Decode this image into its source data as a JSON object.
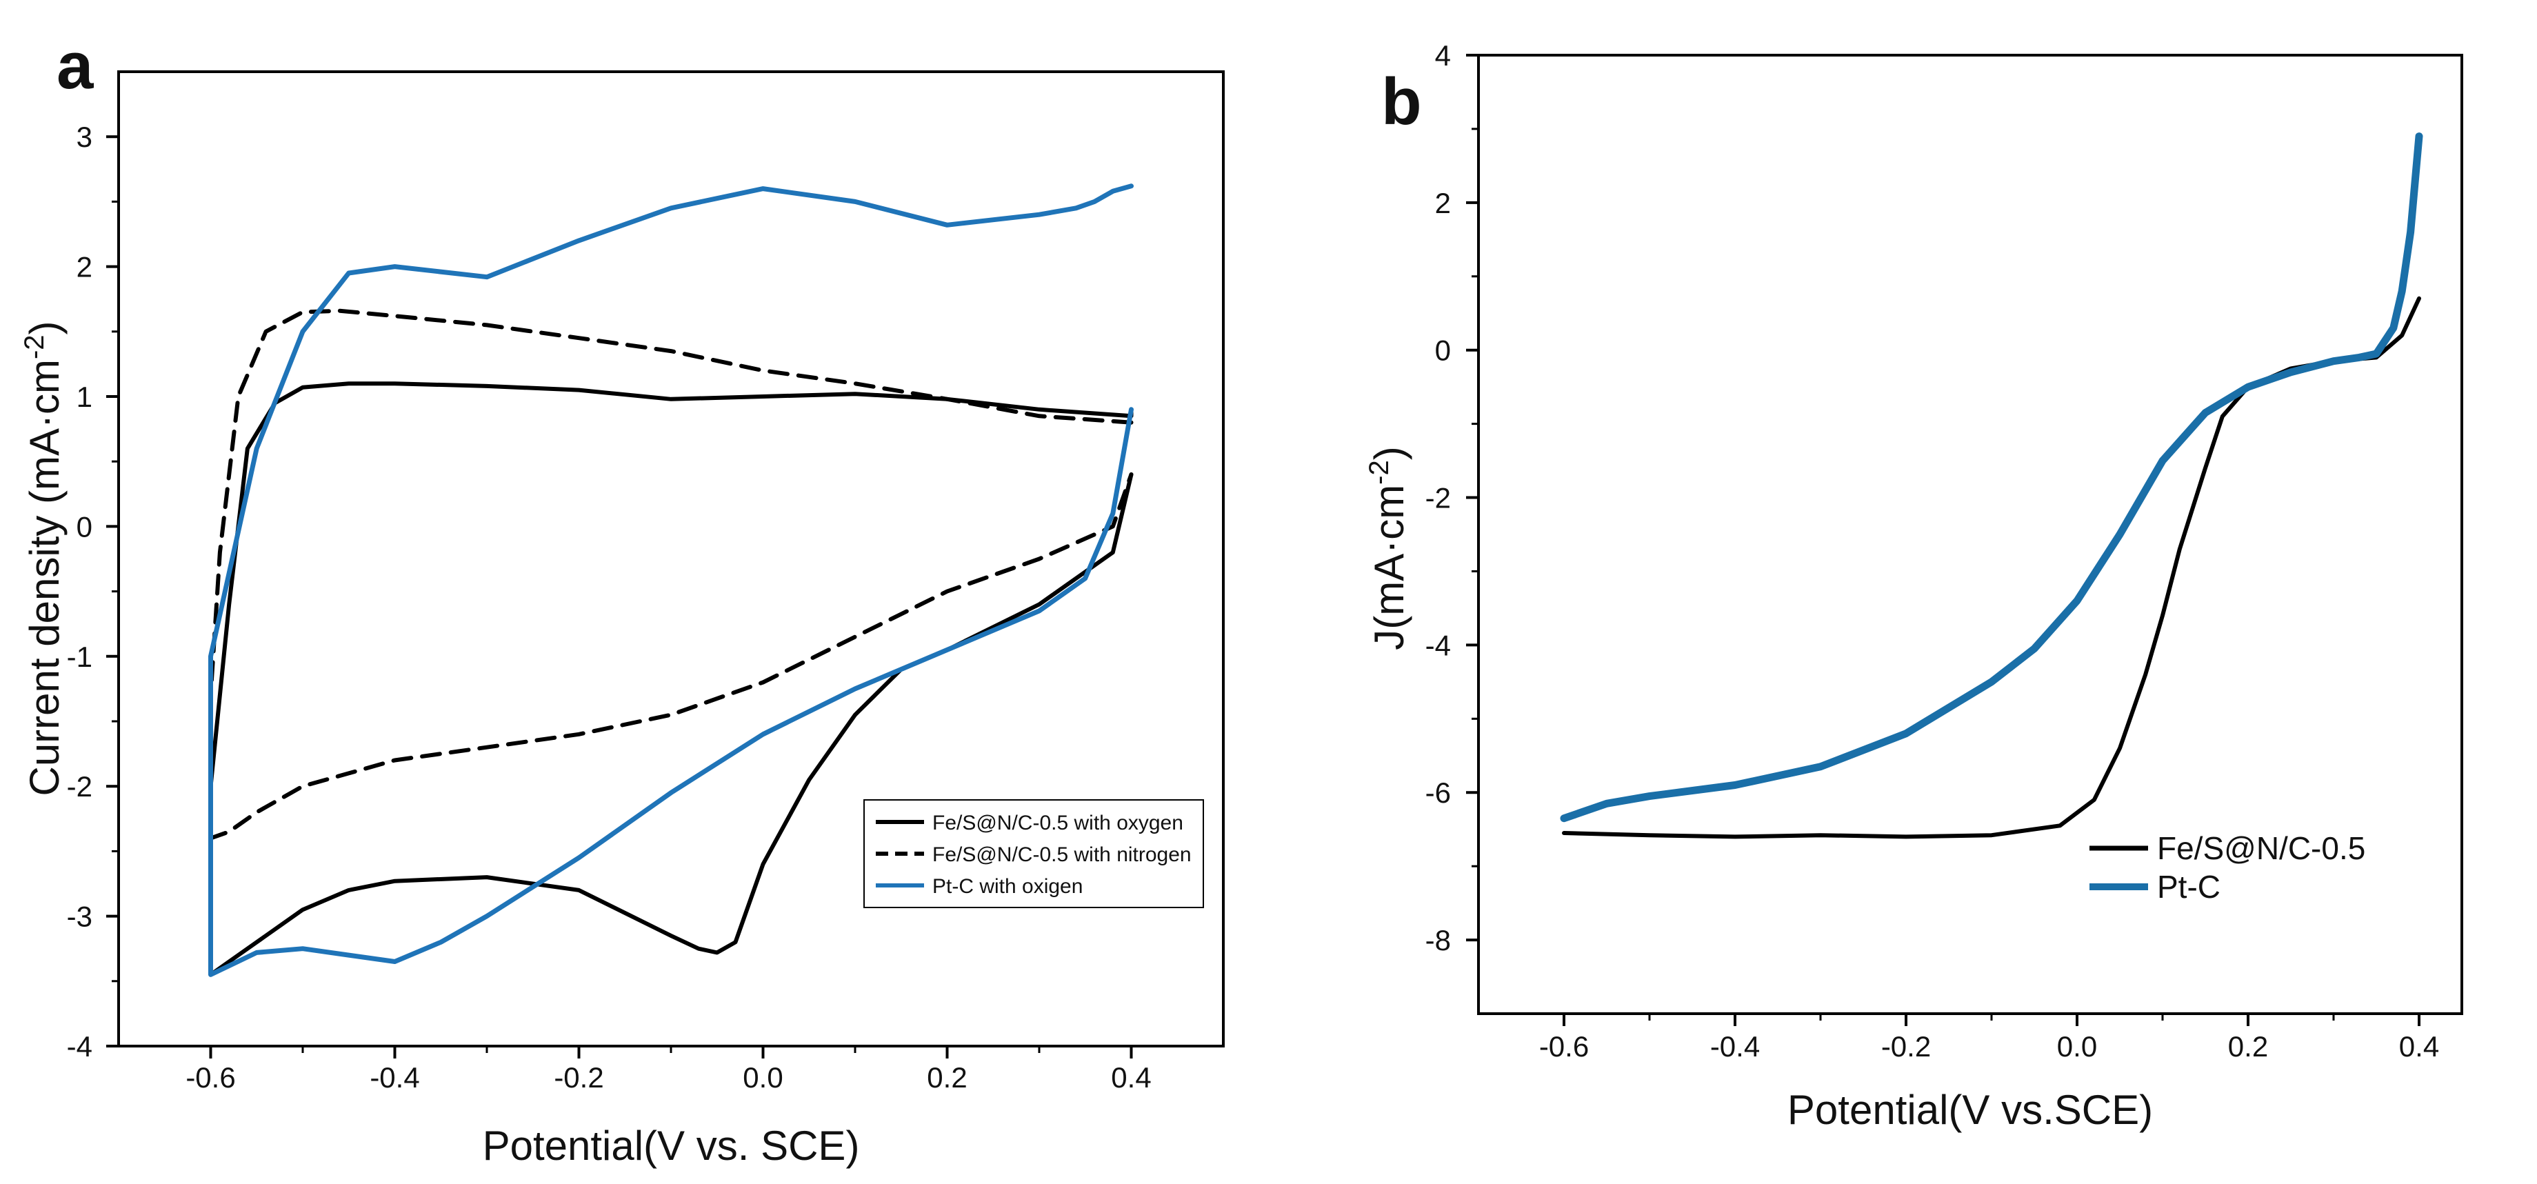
{
  "chart_data": [
    {
      "panel": "a",
      "type": "line",
      "title": "",
      "xlabel": "Potential(V vs. SCE)",
      "ylabel": "Current density (mA·cm",
      "ylabel_sup": "-2",
      "ylabel_tail": ")",
      "xlim": [
        -0.7,
        0.5
      ],
      "ylim": [
        -4,
        3.5
      ],
      "xticks": [
        -0.6,
        -0.4,
        -0.2,
        0.0,
        0.2,
        0.4
      ],
      "xtick_labels": [
        "-0.6",
        "-0.4",
        "-0.2",
        "0.0",
        "0.2",
        "0.4"
      ],
      "yticks": [
        -4,
        -3,
        -2,
        -1,
        0,
        1,
        2,
        3
      ],
      "ytick_labels": [
        "-4",
        "-3",
        "-2",
        "-1",
        "0",
        "1",
        "2",
        "3"
      ],
      "grid": false,
      "legend_position": "lower-right",
      "series": [
        {
          "name": "Fe/S@N/C-0.5 with oxygen",
          "color": "#000000",
          "style": "solid",
          "x": [
            0.4,
            0.4,
            0.3,
            0.2,
            0.1,
            0.0,
            -0.1,
            -0.2,
            -0.3,
            -0.4,
            -0.45,
            -0.5,
            -0.53,
            -0.56,
            -0.58,
            -0.6,
            -0.6,
            -0.56,
            -0.5,
            -0.45,
            -0.4,
            -0.3,
            -0.2,
            -0.1,
            -0.07,
            -0.05,
            -0.03,
            0.0,
            0.05,
            0.1,
            0.15,
            0.2,
            0.3,
            0.38,
            0.4
          ],
          "y": [
            0.9,
            0.85,
            0.9,
            0.98,
            1.02,
            1.0,
            0.98,
            1.05,
            1.08,
            1.1,
            1.1,
            1.07,
            0.95,
            0.6,
            -0.6,
            -2.0,
            -3.45,
            -3.25,
            -2.95,
            -2.8,
            -2.73,
            -2.7,
            -2.8,
            -3.15,
            -3.25,
            -3.28,
            -3.2,
            -2.6,
            -1.95,
            -1.45,
            -1.1,
            -0.95,
            -0.6,
            -0.2,
            0.4
          ]
        },
        {
          "name": "Fe/S@N/C-0.5 with nitrogen",
          "color": "#000000",
          "style": "dashed",
          "x": [
            0.4,
            0.3,
            0.2,
            0.1,
            0.0,
            -0.1,
            -0.2,
            -0.3,
            -0.4,
            -0.46,
            -0.5,
            -0.54,
            -0.57,
            -0.59,
            -0.6,
            -0.6,
            -0.58,
            -0.55,
            -0.5,
            -0.45,
            -0.4,
            -0.3,
            -0.2,
            -0.1,
            0.0,
            0.1,
            0.2,
            0.3,
            0.38,
            0.4
          ],
          "y": [
            0.8,
            0.85,
            0.98,
            1.1,
            1.2,
            1.35,
            1.45,
            1.55,
            1.62,
            1.66,
            1.65,
            1.5,
            1.0,
            -0.2,
            -1.3,
            -2.4,
            -2.35,
            -2.2,
            -2.0,
            -1.9,
            -1.8,
            -1.7,
            -1.6,
            -1.45,
            -1.2,
            -0.85,
            -0.5,
            -0.25,
            0.0,
            0.4
          ]
        },
        {
          "name": "Pt-C with oxigen",
          "color": "#1f74b8",
          "style": "solid",
          "x": [
            0.4,
            0.38,
            0.36,
            0.34,
            0.3,
            0.2,
            0.1,
            0.0,
            -0.1,
            -0.2,
            -0.3,
            -0.4,
            -0.45,
            -0.5,
            -0.55,
            -0.6,
            -0.6,
            -0.55,
            -0.5,
            -0.45,
            -0.4,
            -0.35,
            -0.3,
            -0.2,
            -0.1,
            0.0,
            0.1,
            0.2,
            0.3,
            0.35,
            0.38,
            0.4
          ],
          "y": [
            2.62,
            2.58,
            2.5,
            2.45,
            2.4,
            2.32,
            2.5,
            2.6,
            2.45,
            2.2,
            1.92,
            2.0,
            1.95,
            1.5,
            0.6,
            -1.0,
            -3.45,
            -3.28,
            -3.25,
            -3.3,
            -3.35,
            -3.2,
            -3.0,
            -2.55,
            -2.05,
            -1.6,
            -1.25,
            -0.95,
            -0.65,
            -0.4,
            0.1,
            0.9
          ]
        }
      ]
    },
    {
      "panel": "b",
      "type": "line",
      "title": "",
      "xlabel": "Potential(V vs.SCE)",
      "ylabel": "J(mA·cm",
      "ylabel_sup": "-2",
      "ylabel_tail": ")",
      "xlim": [
        -0.7,
        0.45
      ],
      "ylim": [
        -9,
        4
      ],
      "xticks": [
        -0.6,
        -0.4,
        -0.2,
        0.0,
        0.2,
        0.4
      ],
      "xtick_labels": [
        "-0.6",
        "-0.4",
        "-0.2",
        "0.0",
        "0.2",
        "0.4"
      ],
      "yticks": [
        -8,
        -6,
        -4,
        -2,
        0,
        2,
        4
      ],
      "ytick_labels": [
        "-8",
        "-6",
        "-4",
        "-2",
        "0",
        "2",
        "4"
      ],
      "grid": false,
      "legend_position": "lower-right",
      "series": [
        {
          "name": "Fe/S@N/C-0.5",
          "color": "#000000",
          "style": "solid",
          "x": [
            -0.6,
            -0.5,
            -0.4,
            -0.3,
            -0.2,
            -0.1,
            -0.02,
            0.02,
            0.05,
            0.08,
            0.1,
            0.12,
            0.15,
            0.17,
            0.2,
            0.25,
            0.3,
            0.35,
            0.38,
            0.4
          ],
          "y": [
            -6.55,
            -6.58,
            -6.6,
            -6.58,
            -6.6,
            -6.58,
            -6.45,
            -6.1,
            -5.4,
            -4.4,
            -3.6,
            -2.7,
            -1.6,
            -0.9,
            -0.5,
            -0.25,
            -0.15,
            -0.1,
            0.2,
            0.7
          ]
        },
        {
          "name": "Pt-C",
          "color": "#1a6fa8",
          "style": "solid",
          "x": [
            -0.6,
            -0.55,
            -0.5,
            -0.4,
            -0.3,
            -0.2,
            -0.1,
            -0.05,
            0.0,
            0.05,
            0.1,
            0.15,
            0.2,
            0.25,
            0.3,
            0.33,
            0.35,
            0.37,
            0.38,
            0.39,
            0.4
          ],
          "y": [
            -6.35,
            -6.15,
            -6.05,
            -5.9,
            -5.65,
            -5.2,
            -4.5,
            -4.05,
            -3.4,
            -2.5,
            -1.5,
            -0.85,
            -0.5,
            -0.3,
            -0.15,
            -0.1,
            -0.05,
            0.3,
            0.8,
            1.6,
            2.9
          ]
        }
      ]
    }
  ]
}
